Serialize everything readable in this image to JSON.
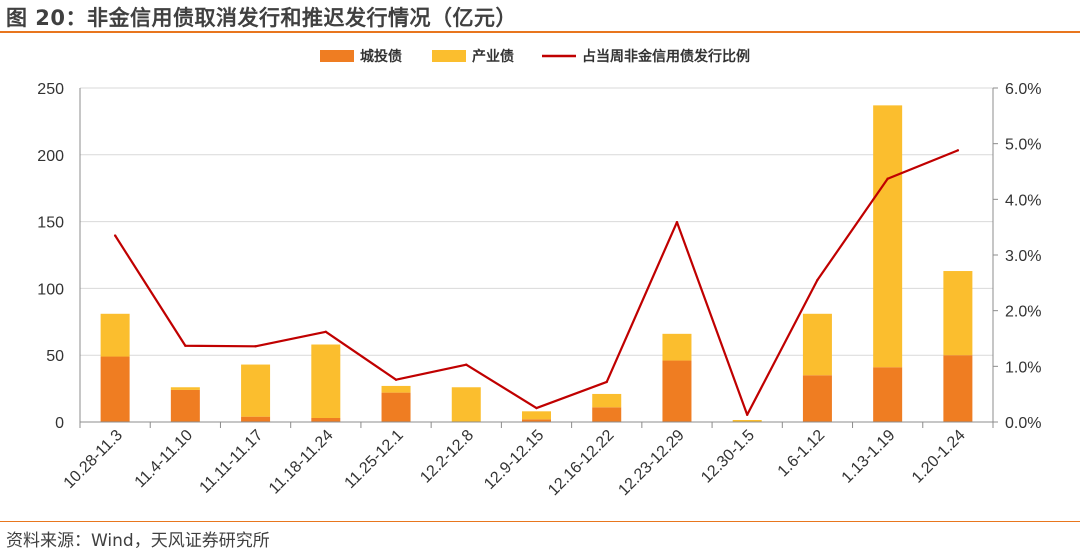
{
  "title": "图 20：非金信用债取消发行和推迟发行情况（亿元）",
  "source": "资料来源：Wind，天风证券研究所",
  "chart_data": {
    "type": "bar",
    "stacked": true,
    "categories": [
      "10.28-11.3",
      "11.4-11.10",
      "11.11-11.17",
      "11.18-11.24",
      "11.25-12.1",
      "12.2-12.8",
      "12.9-12.15",
      "12.16-12.22",
      "12.23-12.29",
      "12.30-1.5",
      "1.6-1.12",
      "1.13-1.19",
      "1.20-1.24"
    ],
    "series": [
      {
        "name": "城投债",
        "kind": "bar",
        "axis": "left",
        "color": "#ef7d22",
        "values": [
          49,
          24,
          4,
          3,
          22,
          0,
          2,
          11,
          46,
          0,
          35,
          41,
          50
        ]
      },
      {
        "name": "产业债",
        "kind": "bar",
        "axis": "left",
        "color": "#fbbe2e",
        "values": [
          32,
          2,
          39,
          55,
          5,
          26,
          6,
          10,
          20,
          1.5,
          46,
          196,
          63
        ]
      },
      {
        "name": "占当周非金信用债发行比例",
        "kind": "line",
        "axis": "right",
        "color": "#c00000",
        "values": [
          3.35,
          1.37,
          1.36,
          1.62,
          0.76,
          1.03,
          0.25,
          0.72,
          3.59,
          0.13,
          2.55,
          4.37,
          4.88
        ]
      }
    ],
    "ylim_left": [
      0,
      250
    ],
    "yticks_left": [
      "0",
      "50",
      "100",
      "150",
      "200",
      "250"
    ],
    "ylim_right": [
      0,
      6
    ],
    "yticks_right": [
      "0.0%",
      "1.0%",
      "2.0%",
      "3.0%",
      "4.0%",
      "5.0%",
      "6.0%"
    ],
    "grid": true,
    "legend_position": "top-center"
  }
}
